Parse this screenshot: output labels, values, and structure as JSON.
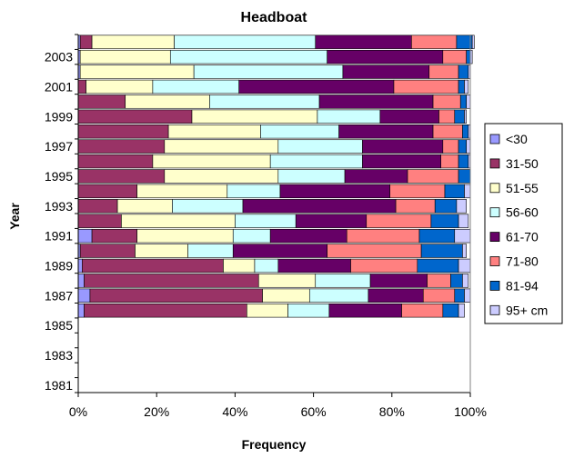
{
  "chart_data": {
    "type": "bar",
    "orientation": "horizontal",
    "stacked": "percent",
    "title": "Headboat",
    "xlabel": "Frequency",
    "ylabel": "Year",
    "xlim": [
      0,
      100
    ],
    "xticks": [
      "0%",
      "20%",
      "40%",
      "60%",
      "80%",
      "100%"
    ],
    "yticks": [
      "1981",
      "1983",
      "1985",
      "1987",
      "1989",
      "1991",
      "1993",
      "1995",
      "1997",
      "1999",
      "2001",
      "2003"
    ],
    "grid": false,
    "legend_position": "right",
    "categories": [
      1981,
      1982,
      1983,
      1984,
      1985,
      1986,
      1987,
      1988,
      1989,
      1990,
      1991,
      1992,
      1993,
      1994,
      1995,
      1996,
      1997,
      1998,
      1999,
      2000,
      2001,
      2002,
      2003,
      2004
    ],
    "series": [
      {
        "name": "<30",
        "color": "#9999ff",
        "values": [
          null,
          null,
          null,
          null,
          null,
          1.5,
          3,
          1.5,
          1,
          0.5,
          3.5,
          0,
          0,
          0,
          0,
          0,
          0,
          0,
          0,
          0,
          0,
          0.5,
          0.5,
          0.5
        ]
      },
      {
        "name": "31-50",
        "color": "#993366",
        "values": [
          null,
          null,
          null,
          null,
          null,
          41.5,
          44,
          44.5,
          36,
          14,
          11.5,
          11,
          10,
          15,
          22,
          19,
          22,
          23,
          29,
          12,
          2,
          0,
          0,
          3
        ]
      },
      {
        "name": "51-55",
        "color": "#ffffcc",
        "values": [
          null,
          null,
          null,
          null,
          null,
          10.5,
          12,
          14.5,
          8,
          13.5,
          24.5,
          29,
          14,
          23,
          29,
          30,
          29,
          23.5,
          32,
          21.5,
          17,
          29,
          23,
          21
        ]
      },
      {
        "name": "56-60",
        "color": "#ccffff",
        "values": [
          null,
          null,
          null,
          null,
          null,
          10.5,
          15,
          14,
          6,
          11.5,
          9.5,
          15.5,
          18,
          13.5,
          17,
          23.5,
          21.5,
          20,
          16,
          28,
          22,
          38,
          40,
          36
        ]
      },
      {
        "name": "61-70",
        "color": "#660066",
        "values": [
          null,
          null,
          null,
          null,
          null,
          18.5,
          14,
          14.5,
          18.5,
          24,
          19.5,
          18,
          39,
          28,
          16,
          20,
          20.5,
          24,
          15,
          29,
          39.5,
          22,
          29.5,
          24.5
        ]
      },
      {
        "name": "71-80",
        "color": "#ff8080",
        "values": [
          null,
          null,
          null,
          null,
          null,
          10.5,
          8,
          6,
          17,
          24,
          18.5,
          16.5,
          10,
          14,
          13,
          4.5,
          4,
          7.5,
          4,
          7,
          16.5,
          7.5,
          6,
          11.5
        ]
      },
      {
        "name": "81-94",
        "color": "#0066cc",
        "values": [
          null,
          null,
          null,
          null,
          null,
          4,
          2.5,
          3,
          10.5,
          10.5,
          9,
          7,
          5.5,
          5,
          3,
          2.5,
          2,
          1.5,
          2.5,
          1.5,
          1.5,
          2.5,
          1,
          4
        ]
      },
      {
        "name": "95+ cm",
        "color": "#ccccff",
        "values": [
          null,
          null,
          null,
          null,
          null,
          1.5,
          1.5,
          1.5,
          3,
          1,
          4,
          2.5,
          2.5,
          1.5,
          0,
          0.5,
          1,
          0.5,
          0.5,
          1,
          1,
          0.5,
          0.5,
          0.5
        ]
      }
    ]
  }
}
